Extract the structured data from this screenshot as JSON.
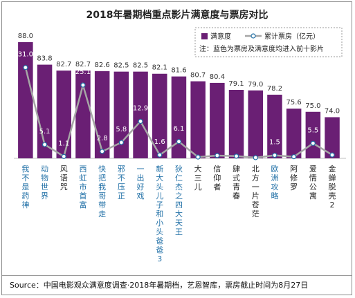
{
  "chart_data": {
    "type": "bar",
    "title": "2018年暑期档重点影片满意度与票房对比",
    "categories": [
      "我不是药神",
      "动物世界",
      "风语咒",
      "西虹市首富",
      "快把我哥带走",
      "邪不压正",
      "一出好戏",
      "新大头儿子和小头爸爸3",
      "狄仁杰之四大天王",
      "大三儿",
      "信仰者",
      "肆式青春",
      "北方一片苍茫",
      "欧洲攻略",
      "阿修罗",
      "爱情公寓",
      "金蝉脱壳2"
    ],
    "highlight_indices": [
      0,
      1,
      3,
      4,
      5,
      6,
      7,
      8,
      13
    ],
    "series": [
      {
        "name": "满意度",
        "type": "bar",
        "values": [
          88.0,
          83.8,
          82.7,
          82.7,
          82.6,
          82.5,
          82.5,
          82.1,
          81.6,
          80.7,
          80.4,
          79.1,
          79.0,
          78.2,
          75.6,
          75.0,
          74.0
        ]
      },
      {
        "name": "累计票房（亿元）",
        "type": "line",
        "values": [
          31.0,
          5.1,
          1.1,
          25.1,
          2.8,
          5.8,
          12.9,
          1.6,
          6.1,
          null,
          null,
          null,
          null,
          1.5,
          null,
          5.5,
          null
        ]
      }
    ],
    "line_value_labels": [
      "31.0",
      "5.1",
      "1.1",
      "25.1",
      "2.8",
      "5.8",
      "12.9",
      "1.6",
      "6.1",
      "",
      "",
      "",
      "",
      "1.5",
      "",
      "5.5",
      ""
    ],
    "bar_value_labels": [
      "88.0",
      "83.8",
      "82.7",
      "82.7",
      "82.6",
      "82.5",
      "82.5",
      "82.1",
      "81.6",
      "80.7",
      "80.4",
      "79.1",
      "79.0",
      "78.2",
      "75.6",
      "75.0",
      "74.0"
    ],
    "legend": {
      "bar": "满意度",
      "line": "累计票房（亿元）",
      "note": "注：蓝色为票房及满意度均进入前十影片",
      "placement": "top-right"
    },
    "source": "Source：中国电影观众满意度调查·2018年暑期档，艺恩智库，票房截止时间为8月27日",
    "colors": {
      "bar": "#6a1f74",
      "line": "#a6a6a6",
      "highlight": "#1f6fa6",
      "normal_label": "#222222"
    }
  }
}
